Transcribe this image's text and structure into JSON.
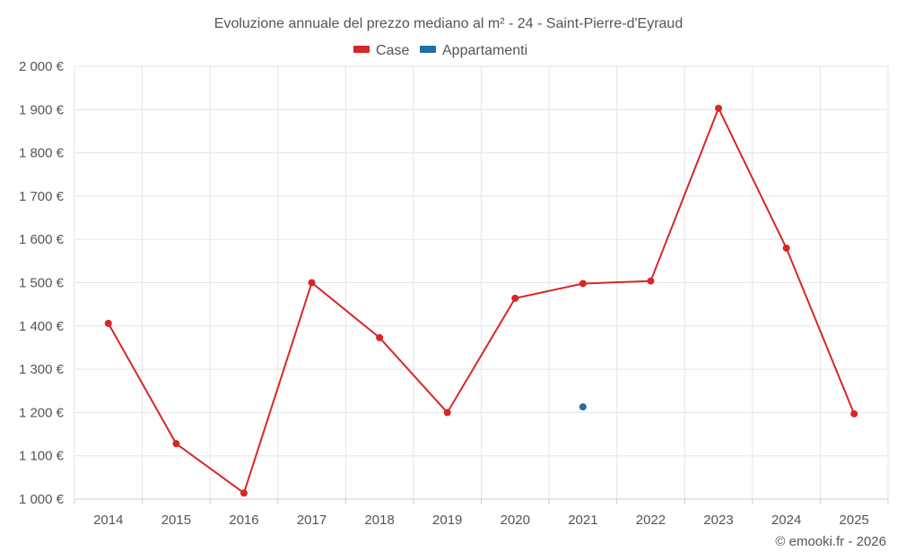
{
  "chart_data": {
    "type": "line",
    "title": "Evoluzione annuale del prezzo mediano al m² - 24 - Saint-Pierre-d'Eyraud",
    "categories": [
      "2014",
      "2015",
      "2016",
      "2017",
      "2018",
      "2019",
      "2020",
      "2021",
      "2022",
      "2023",
      "2024",
      "2025"
    ],
    "series": [
      {
        "name": "Case",
        "color": "#d62728",
        "values": [
          1406,
          1128,
          1014,
          1500,
          1373,
          1200,
          1464,
          1498,
          1504,
          1903,
          1580,
          1197
        ]
      },
      {
        "name": "Appartamenti",
        "color": "#1f6fa8",
        "values": [
          null,
          null,
          null,
          null,
          null,
          null,
          null,
          1213,
          null,
          null,
          null,
          null
        ]
      }
    ],
    "ylim": [
      1000,
      2000
    ],
    "yticks": [
      1000,
      1100,
      1200,
      1300,
      1400,
      1500,
      1600,
      1700,
      1800,
      1900,
      2000
    ],
    "ytick_labels": [
      "1 000 €",
      "1 100 €",
      "1 200 €",
      "1 300 €",
      "1 400 €",
      "1 500 €",
      "1 600 €",
      "1 700 €",
      "1 800 €",
      "1 900 €",
      "2 000 €"
    ],
    "grid": true,
    "legend_position": "top-center"
  },
  "credit": "© emooki.fr - 2026"
}
